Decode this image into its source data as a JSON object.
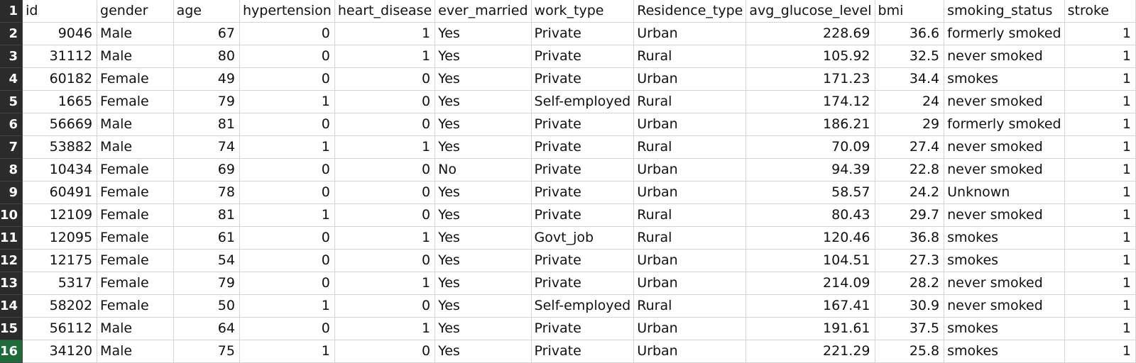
{
  "sheet": {
    "headers": [
      "id",
      "gender",
      "age",
      "hypertension",
      "heart_disease",
      "ever_married",
      "work_type",
      "Residence_type",
      "avg_glucose_level",
      "bmi",
      "smoking_status",
      "stroke"
    ],
    "numeric_columns": [
      0,
      2,
      3,
      4,
      8,
      9,
      11
    ],
    "row_numbers": [
      "1",
      "2",
      "3",
      "4",
      "5",
      "6",
      "7",
      "8",
      "9",
      "10",
      "11",
      "12",
      "13",
      "14",
      "15",
      "16"
    ],
    "rows": [
      [
        "9046",
        "Male",
        "67",
        "0",
        "1",
        "Yes",
        "Private",
        "Urban",
        "228.69",
        "36.6",
        "formerly smoked",
        "1"
      ],
      [
        "31112",
        "Male",
        "80",
        "0",
        "1",
        "Yes",
        "Private",
        "Rural",
        "105.92",
        "32.5",
        "never smoked",
        "1"
      ],
      [
        "60182",
        "Female",
        "49",
        "0",
        "0",
        "Yes",
        "Private",
        "Urban",
        "171.23",
        "34.4",
        "smokes",
        "1"
      ],
      [
        "1665",
        "Female",
        "79",
        "1",
        "0",
        "Yes",
        "Self-employed",
        "Rural",
        "174.12",
        "24",
        "never smoked",
        "1"
      ],
      [
        "56669",
        "Male",
        "81",
        "0",
        "0",
        "Yes",
        "Private",
        "Urban",
        "186.21",
        "29",
        "formerly smoked",
        "1"
      ],
      [
        "53882",
        "Male",
        "74",
        "1",
        "1",
        "Yes",
        "Private",
        "Rural",
        "70.09",
        "27.4",
        "never smoked",
        "1"
      ],
      [
        "10434",
        "Female",
        "69",
        "0",
        "0",
        "No",
        "Private",
        "Urban",
        "94.39",
        "22.8",
        "never smoked",
        "1"
      ],
      [
        "60491",
        "Female",
        "78",
        "0",
        "0",
        "Yes",
        "Private",
        "Urban",
        "58.57",
        "24.2",
        "Unknown",
        "1"
      ],
      [
        "12109",
        "Female",
        "81",
        "1",
        "0",
        "Yes",
        "Private",
        "Rural",
        "80.43",
        "29.7",
        "never smoked",
        "1"
      ],
      [
        "12095",
        "Female",
        "61",
        "0",
        "1",
        "Yes",
        "Govt_job",
        "Rural",
        "120.46",
        "36.8",
        "smokes",
        "1"
      ],
      [
        "12175",
        "Female",
        "54",
        "0",
        "0",
        "Yes",
        "Private",
        "Urban",
        "104.51",
        "27.3",
        "smokes",
        "1"
      ],
      [
        "5317",
        "Female",
        "79",
        "0",
        "1",
        "Yes",
        "Private",
        "Urban",
        "214.09",
        "28.2",
        "never smoked",
        "1"
      ],
      [
        "58202",
        "Female",
        "50",
        "1",
        "0",
        "Yes",
        "Self-employed",
        "Rural",
        "167.41",
        "30.9",
        "never smoked",
        "1"
      ],
      [
        "56112",
        "Male",
        "64",
        "0",
        "1",
        "Yes",
        "Private",
        "Urban",
        "191.61",
        "37.5",
        "smokes",
        "1"
      ],
      [
        "34120",
        "Male",
        "75",
        "1",
        "0",
        "Yes",
        "Private",
        "Urban",
        "221.29",
        "25.8",
        "smokes",
        "1"
      ]
    ]
  }
}
